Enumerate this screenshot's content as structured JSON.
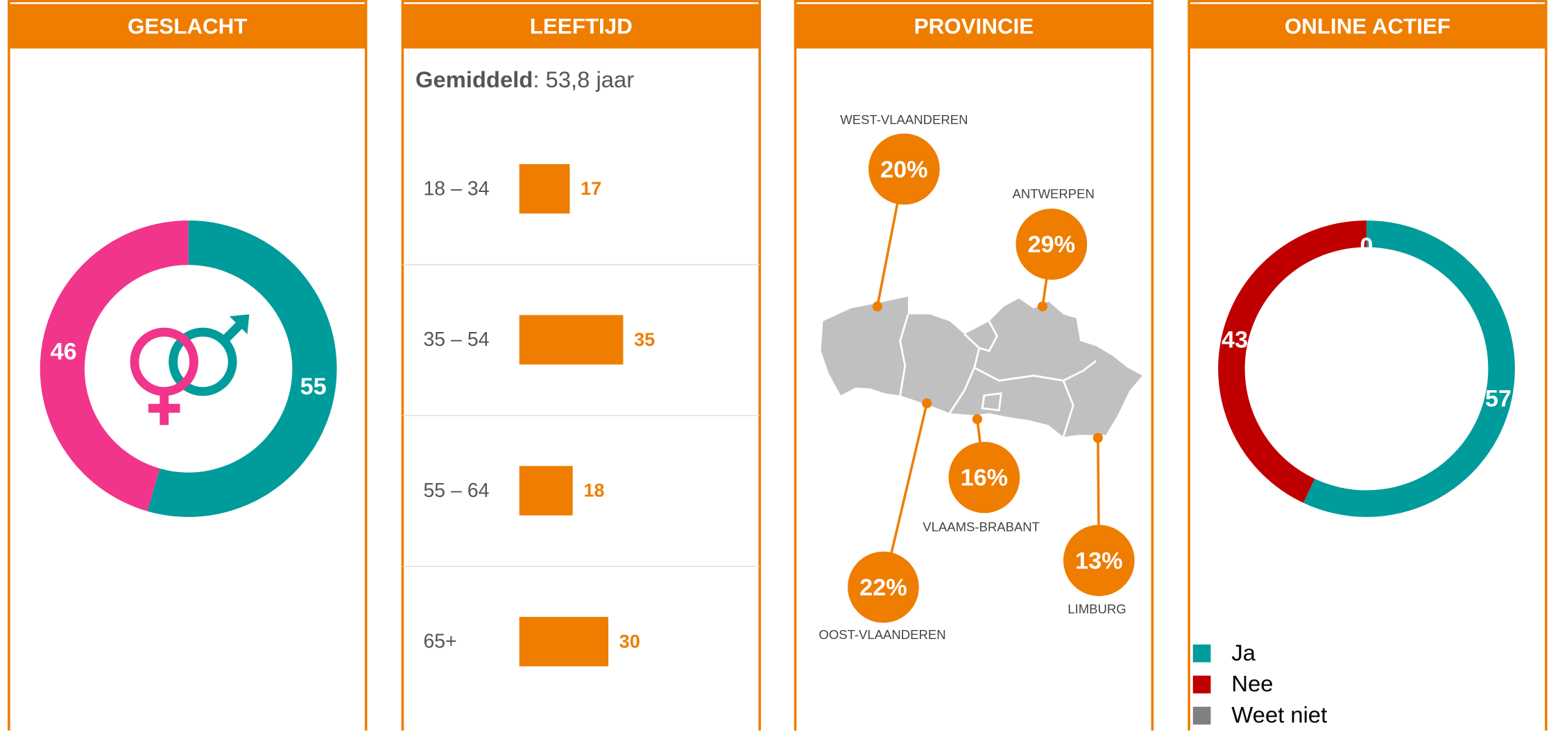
{
  "chart_data": [
    {
      "type": "donut",
      "title": "GESLACHT",
      "categories": [
        null,
        null
      ],
      "values": [
        55,
        46
      ],
      "colors": [
        "#009b9b",
        "#f0358a"
      ]
    },
    {
      "type": "bar",
      "title": "LEEFTIJD",
      "annotation": {
        "label": "Gemiddeld",
        "text": ": 53,8 jaar"
      },
      "categories": [
        "18 – 34",
        "35 – 54",
        "55 – 64",
        "65+"
      ],
      "values": [
        17,
        35,
        18,
        30
      ],
      "color": "#ee7d00"
    },
    {
      "type": "map",
      "title": "PROVINCIE",
      "categories": [
        "WEST-VLAANDEREN",
        "ANTWERPEN",
        "VLAAMS-BRABANT",
        "OOST-VLAANDEREN",
        "LIMBURG"
      ],
      "values": [
        20,
        29,
        16,
        22,
        13
      ],
      "value_labels": [
        "20%",
        "29%",
        "16%",
        "22%",
        "13%"
      ],
      "color": "#ee7d00"
    },
    {
      "type": "donut",
      "title": "ONLINE ACTIEF",
      "series": [
        {
          "name": "Ja",
          "color": "#009b9b",
          "values": [
            57
          ]
        },
        {
          "name": "Nee",
          "color": "#c00000",
          "values": [
            43
          ]
        },
        {
          "name": "Weet niet",
          "color": "#808080",
          "values": [
            0
          ]
        }
      ],
      "legend": "bottom-left"
    }
  ]
}
